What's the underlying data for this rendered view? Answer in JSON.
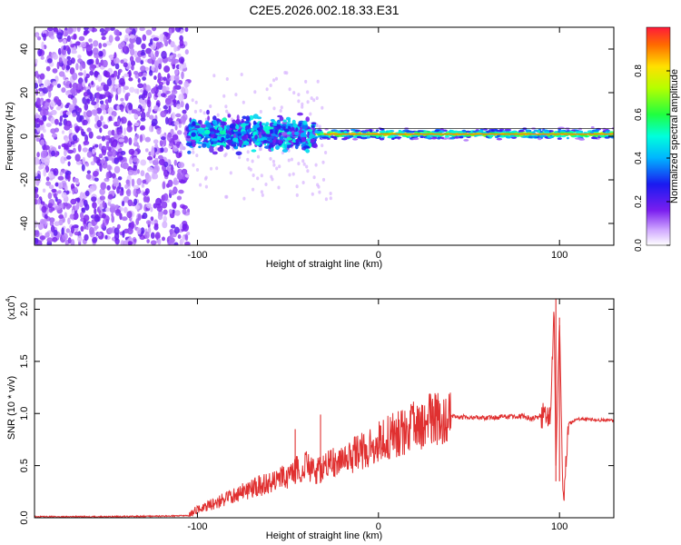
{
  "figure": {
    "title": "C2E5.2026.002.18.33.E31"
  },
  "chart_data": [
    {
      "type": "heatmap",
      "title": "C2E5.2026.002.18.33.E31",
      "xlabel": "Height of straight line (km)",
      "ylabel": "Frequency (Hz)",
      "xlim": [
        -190,
        130
      ],
      "ylim": [
        -50,
        50
      ],
      "xticks": [
        -100,
        0,
        100
      ],
      "xtick_labels": [
        "-100",
        "0",
        "100"
      ],
      "yticks": [
        -40,
        -20,
        0,
        20,
        40
      ],
      "ytick_labels": [
        "-40",
        "-20",
        "0",
        "20",
        "40"
      ],
      "colorbar": {
        "label": "Normalized spectral amplitude",
        "range": [
          0,
          1
        ],
        "ticks": [
          0.0,
          0.2,
          0.4,
          0.6,
          0.8
        ],
        "tick_labels": [
          "0.0",
          "0.2",
          "0.4",
          "0.6",
          "0.8"
        ],
        "colormap": "rainbow (white-purple-blue-cyan-green-yellow-red)"
      },
      "regions": [
        {
          "x_range": [
            -190,
            -105
          ],
          "freq_range": [
            -50,
            50
          ],
          "amplitude": 0.1,
          "description": "broadband noise"
        },
        {
          "x_range": [
            -105,
            -35
          ],
          "freq_range": [
            -8,
            8
          ],
          "amplitude": 0.3,
          "description": "blue-cyan band with spread"
        },
        {
          "x_range": [
            -35,
            130
          ],
          "freq_range": [
            -1,
            3
          ],
          "amplitude": 0.7,
          "description": "narrow line near 1 Hz, red peaks"
        }
      ],
      "line_center_freq": 1.0
    },
    {
      "type": "line",
      "title": "",
      "xlabel": "Height of straight line (km)",
      "ylabel": "SNR (10 * v/v)",
      "ylabel_scale": "(x10",
      "ylabel_scale_exp": "4",
      "ylabel_scale_close": ")",
      "xlim": [
        -190,
        130
      ],
      "ylim": [
        0,
        2.1
      ],
      "xticks": [
        -100,
        0,
        100
      ],
      "xtick_labels": [
        "-100",
        "0",
        "100"
      ],
      "yticks": [
        0.0,
        0.5,
        1.0,
        1.5,
        2.0
      ],
      "ytick_labels": [
        "0.0",
        "0.5",
        "1.0",
        "1.5",
        "2.0"
      ],
      "series": [
        {
          "name": "SNR",
          "color": "#e03030",
          "x": [
            -190,
            -150,
            -105,
            -100,
            -90,
            -80,
            -70,
            -60,
            -50,
            -45,
            -40,
            -35,
            -30,
            -20,
            -10,
            0,
            10,
            20,
            30,
            40,
            50,
            60,
            70,
            80,
            85,
            90,
            95,
            97,
            98,
            100,
            102,
            105,
            110,
            120,
            130
          ],
          "y": [
            0.01,
            0.01,
            0.02,
            0.08,
            0.14,
            0.22,
            0.28,
            0.34,
            0.4,
            0.46,
            0.52,
            0.44,
            0.48,
            0.56,
            0.63,
            0.73,
            0.8,
            0.88,
            0.94,
            0.97,
            0.97,
            0.96,
            0.97,
            0.97,
            0.95,
            0.98,
            1.0,
            2.05,
            0.5,
            1.9,
            0.1,
            0.9,
            0.95,
            0.94,
            0.93
          ]
        }
      ],
      "spikes": [
        {
          "x": -46,
          "y": 0.85
        },
        {
          "x": -32,
          "y": 0.99
        },
        {
          "x": 98,
          "y": 2.1
        },
        {
          "x": 100,
          "y": 1.92
        }
      ]
    }
  ]
}
